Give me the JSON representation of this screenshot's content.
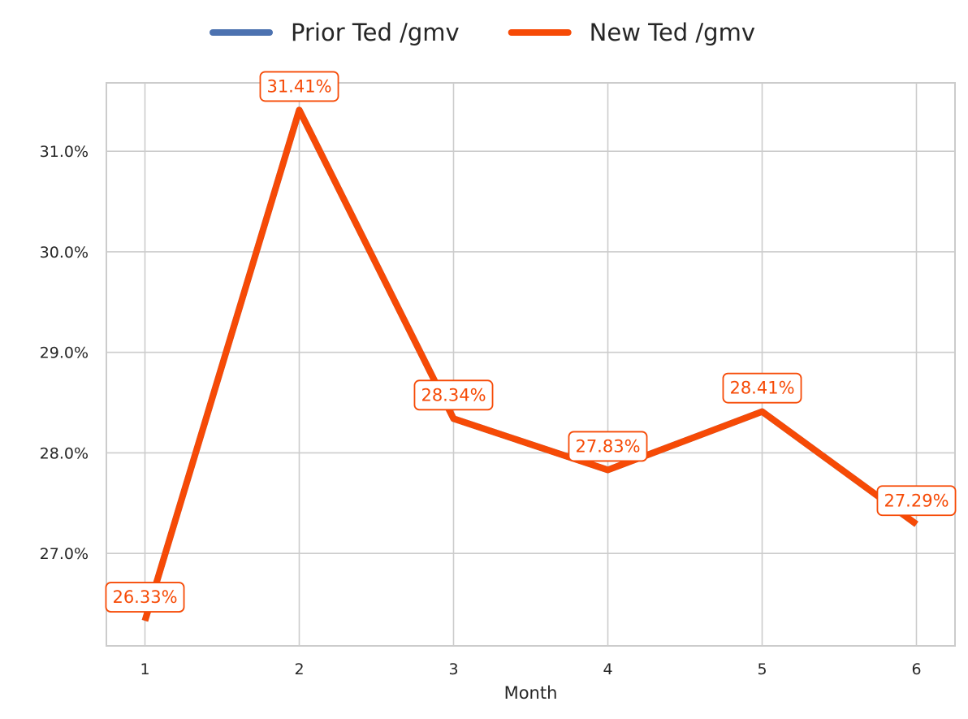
{
  "chart_data": {
    "type": "line",
    "title": "",
    "xlabel": "Month",
    "ylabel": "",
    "x": [
      1,
      2,
      3,
      4,
      5,
      6
    ],
    "x_tick_labels": [
      "1",
      "2",
      "3",
      "4",
      "5",
      "6"
    ],
    "xlim": [
      0.75,
      6.25
    ],
    "ylim": [
      26.08,
      31.68
    ],
    "y_ticks": [
      27.0,
      28.0,
      29.0,
      30.0,
      31.0
    ],
    "y_tick_labels": [
      "27.0%",
      "28.0%",
      "29.0%",
      "30.0%",
      "31.0%"
    ],
    "grid": true,
    "legend_position": "top-center",
    "series": [
      {
        "name": "Prior Ted /gmv",
        "color": "#4c72b0",
        "values": [
          26.33,
          31.41,
          28.34,
          27.83,
          28.41,
          27.29
        ],
        "data_labels": []
      },
      {
        "name": "New Ted /gmv",
        "color": "#f64a06",
        "values": [
          26.33,
          31.41,
          28.34,
          27.83,
          28.41,
          27.29
        ],
        "data_labels": [
          "26.33%",
          "31.41%",
          "28.34%",
          "27.83%",
          "28.41%",
          "27.29%"
        ]
      }
    ]
  }
}
